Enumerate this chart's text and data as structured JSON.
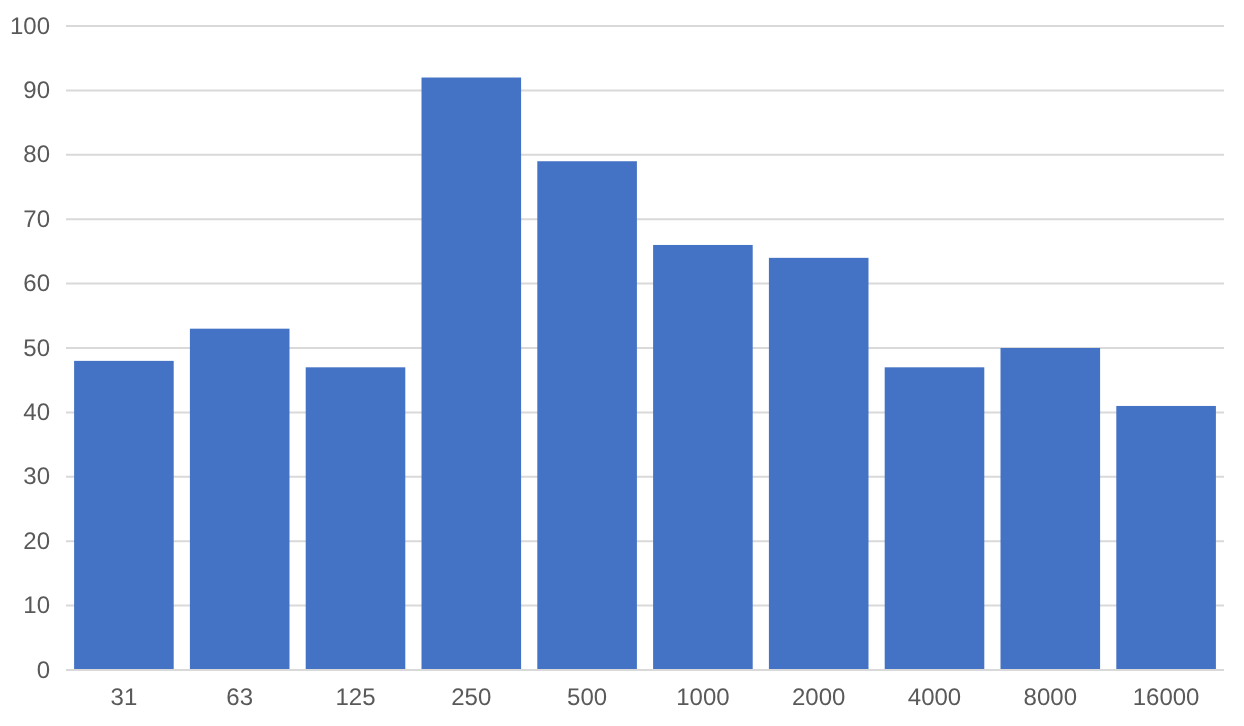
{
  "chart_data": {
    "type": "bar",
    "categories": [
      "31",
      "63",
      "125",
      "250",
      "500",
      "1000",
      "2000",
      "4000",
      "8000",
      "16000"
    ],
    "values": [
      48,
      53,
      47,
      92,
      79,
      66,
      64,
      47,
      50,
      41
    ],
    "color": "#4472c4",
    "ylim": [
      0,
      100
    ],
    "yticks": [
      0,
      10,
      20,
      30,
      40,
      50,
      60,
      70,
      80,
      90,
      100
    ],
    "grid": "y"
  }
}
